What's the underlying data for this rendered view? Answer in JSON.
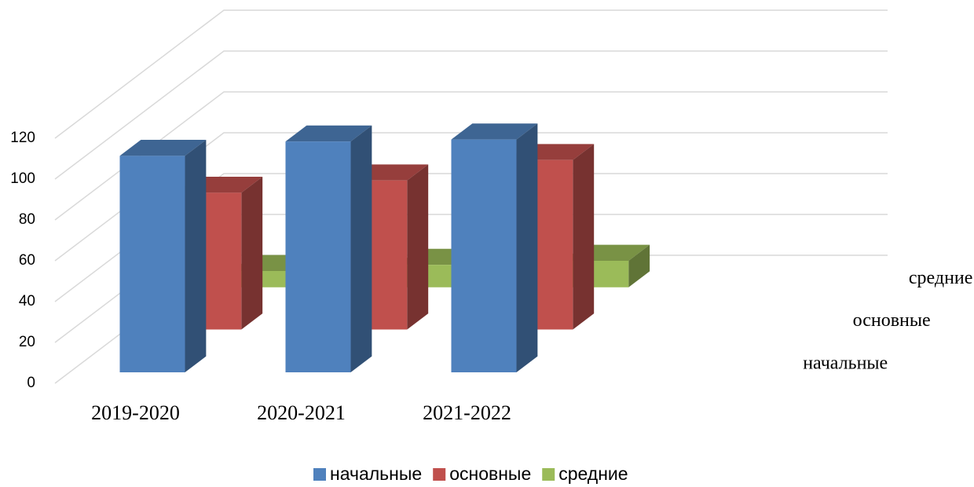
{
  "chart_data": {
    "type": "bar3d",
    "categories": [
      "2019-2020",
      "2020-2021",
      "2021-2022"
    ],
    "series": [
      {
        "name": "начальные",
        "color": "#4f81bd",
        "values": [
          106,
          113,
          114
        ]
      },
      {
        "name": "основные",
        "color": "#c0504d",
        "values": [
          67,
          73,
          83
        ]
      },
      {
        "name": "средние",
        "color": "#9bbb59",
        "values": [
          8,
          11,
          13
        ]
      }
    ],
    "ylim": [
      0,
      120
    ],
    "yticks": [
      0,
      20,
      40,
      60,
      80,
      100,
      120
    ],
    "grid": true,
    "legend": "bottom"
  }
}
